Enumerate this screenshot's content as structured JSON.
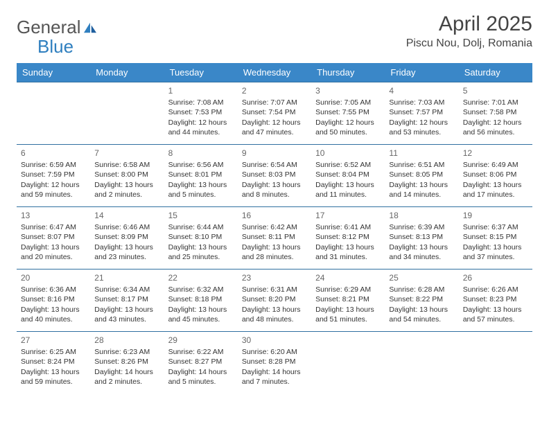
{
  "brand": {
    "part1": "General",
    "part2": "Blue"
  },
  "title": "April 2025",
  "location": "Piscu Nou, Dolj, Romania",
  "colors": {
    "header_bg": "#3a87c8",
    "header_text": "#ffffff",
    "row_border": "#2f6fa0",
    "body_text": "#333333",
    "daynum_text": "#666666",
    "logo_gray": "#555555",
    "logo_blue": "#2f7fbf",
    "page_bg": "#ffffff"
  },
  "typography": {
    "title_fontsize": 30,
    "location_fontsize": 16,
    "dayheader_fontsize": 13,
    "cell_fontsize": 10.5,
    "daynum_fontsize": 12
  },
  "day_headers": [
    "Sunday",
    "Monday",
    "Tuesday",
    "Wednesday",
    "Thursday",
    "Friday",
    "Saturday"
  ],
  "weeks": [
    [
      null,
      null,
      {
        "n": "1",
        "sr": "7:08 AM",
        "ss": "7:53 PM",
        "dl": "12 hours and 44 minutes."
      },
      {
        "n": "2",
        "sr": "7:07 AM",
        "ss": "7:54 PM",
        "dl": "12 hours and 47 minutes."
      },
      {
        "n": "3",
        "sr": "7:05 AM",
        "ss": "7:55 PM",
        "dl": "12 hours and 50 minutes."
      },
      {
        "n": "4",
        "sr": "7:03 AM",
        "ss": "7:57 PM",
        "dl": "12 hours and 53 minutes."
      },
      {
        "n": "5",
        "sr": "7:01 AM",
        "ss": "7:58 PM",
        "dl": "12 hours and 56 minutes."
      }
    ],
    [
      {
        "n": "6",
        "sr": "6:59 AM",
        "ss": "7:59 PM",
        "dl": "12 hours and 59 minutes."
      },
      {
        "n": "7",
        "sr": "6:58 AM",
        "ss": "8:00 PM",
        "dl": "13 hours and 2 minutes."
      },
      {
        "n": "8",
        "sr": "6:56 AM",
        "ss": "8:01 PM",
        "dl": "13 hours and 5 minutes."
      },
      {
        "n": "9",
        "sr": "6:54 AM",
        "ss": "8:03 PM",
        "dl": "13 hours and 8 minutes."
      },
      {
        "n": "10",
        "sr": "6:52 AM",
        "ss": "8:04 PM",
        "dl": "13 hours and 11 minutes."
      },
      {
        "n": "11",
        "sr": "6:51 AM",
        "ss": "8:05 PM",
        "dl": "13 hours and 14 minutes."
      },
      {
        "n": "12",
        "sr": "6:49 AM",
        "ss": "8:06 PM",
        "dl": "13 hours and 17 minutes."
      }
    ],
    [
      {
        "n": "13",
        "sr": "6:47 AM",
        "ss": "8:07 PM",
        "dl": "13 hours and 20 minutes."
      },
      {
        "n": "14",
        "sr": "6:46 AM",
        "ss": "8:09 PM",
        "dl": "13 hours and 23 minutes."
      },
      {
        "n": "15",
        "sr": "6:44 AM",
        "ss": "8:10 PM",
        "dl": "13 hours and 25 minutes."
      },
      {
        "n": "16",
        "sr": "6:42 AM",
        "ss": "8:11 PM",
        "dl": "13 hours and 28 minutes."
      },
      {
        "n": "17",
        "sr": "6:41 AM",
        "ss": "8:12 PM",
        "dl": "13 hours and 31 minutes."
      },
      {
        "n": "18",
        "sr": "6:39 AM",
        "ss": "8:13 PM",
        "dl": "13 hours and 34 minutes."
      },
      {
        "n": "19",
        "sr": "6:37 AM",
        "ss": "8:15 PM",
        "dl": "13 hours and 37 minutes."
      }
    ],
    [
      {
        "n": "20",
        "sr": "6:36 AM",
        "ss": "8:16 PM",
        "dl": "13 hours and 40 minutes."
      },
      {
        "n": "21",
        "sr": "6:34 AM",
        "ss": "8:17 PM",
        "dl": "13 hours and 43 minutes."
      },
      {
        "n": "22",
        "sr": "6:32 AM",
        "ss": "8:18 PM",
        "dl": "13 hours and 45 minutes."
      },
      {
        "n": "23",
        "sr": "6:31 AM",
        "ss": "8:20 PM",
        "dl": "13 hours and 48 minutes."
      },
      {
        "n": "24",
        "sr": "6:29 AM",
        "ss": "8:21 PM",
        "dl": "13 hours and 51 minutes."
      },
      {
        "n": "25",
        "sr": "6:28 AM",
        "ss": "8:22 PM",
        "dl": "13 hours and 54 minutes."
      },
      {
        "n": "26",
        "sr": "6:26 AM",
        "ss": "8:23 PM",
        "dl": "13 hours and 57 minutes."
      }
    ],
    [
      {
        "n": "27",
        "sr": "6:25 AM",
        "ss": "8:24 PM",
        "dl": "13 hours and 59 minutes."
      },
      {
        "n": "28",
        "sr": "6:23 AM",
        "ss": "8:26 PM",
        "dl": "14 hours and 2 minutes."
      },
      {
        "n": "29",
        "sr": "6:22 AM",
        "ss": "8:27 PM",
        "dl": "14 hours and 5 minutes."
      },
      {
        "n": "30",
        "sr": "6:20 AM",
        "ss": "8:28 PM",
        "dl": "14 hours and 7 minutes."
      },
      null,
      null,
      null
    ]
  ],
  "labels": {
    "sunrise": "Sunrise:",
    "sunset": "Sunset:",
    "daylight": "Daylight:"
  }
}
